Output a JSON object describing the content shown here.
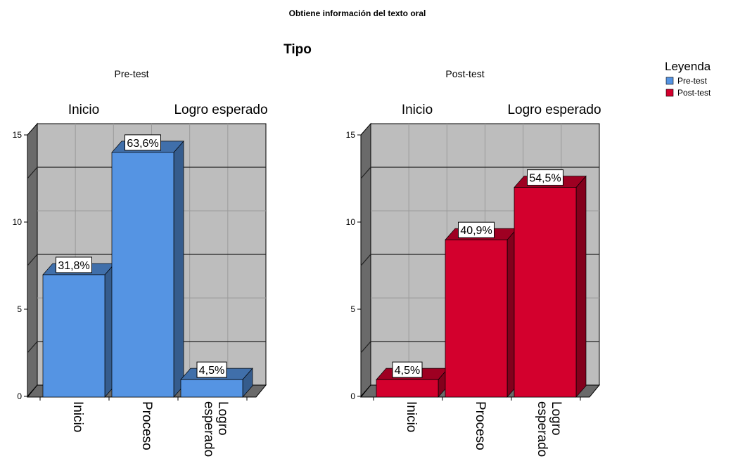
{
  "chart_data": {
    "type": "bar",
    "title": "Obtiene información del texto oral",
    "subtitle": "Tipo",
    "categories": [
      "Inicio",
      "Proceso",
      "Logro esperado"
    ],
    "top_axis_labels": [
      "Inicio",
      "Logro esperado"
    ],
    "ylim": [
      0,
      15
    ],
    "yticks": [
      0,
      5,
      10,
      15
    ],
    "grid": true,
    "legend": {
      "title": "Leyenda",
      "placement": "top-right",
      "entries": [
        {
          "name": "Pre-test",
          "color": "#5594e3"
        },
        {
          "name": "Post-test",
          "color": "#d3002d"
        }
      ]
    },
    "panels": [
      {
        "name": "Pre-test",
        "color": "#5594e3",
        "values": [
          7,
          14,
          1
        ],
        "labels": [
          "31,8%",
          "63,6%",
          "4,5%"
        ]
      },
      {
        "name": "Post-test",
        "color": "#d3002d",
        "values": [
          1,
          9,
          12
        ],
        "labels": [
          "4,5%",
          "40,9%",
          "54,5%"
        ]
      }
    ]
  }
}
